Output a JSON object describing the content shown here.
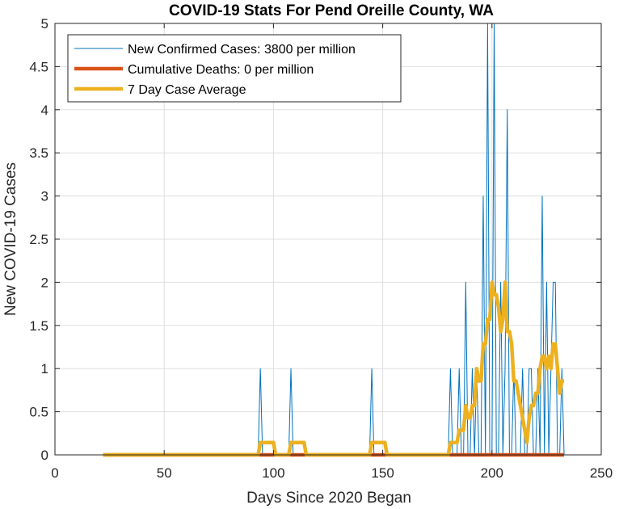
{
  "chart_data": {
    "type": "line",
    "title": "COVID-19 Stats For Pend Oreille County, WA",
    "xlabel": "Days Since 2020 Began",
    "ylabel": "New COVID-19 Cases",
    "xlim": [
      0,
      250
    ],
    "ylim": [
      0,
      5
    ],
    "xticks": [
      0,
      50,
      100,
      150,
      200,
      250
    ],
    "xtick_labels": [
      "0",
      "50",
      "100",
      "150",
      "200",
      "250"
    ],
    "yticks": [
      0,
      0.5,
      1,
      1.5,
      2,
      2.5,
      3,
      3.5,
      4,
      4.5,
      5
    ],
    "ytick_labels": [
      "0",
      "0.5",
      "1",
      "1.5",
      "2",
      "2.5",
      "3",
      "3.5",
      "4",
      "4.5",
      "5"
    ],
    "grid": true,
    "legend_position": "top-left",
    "series": [
      {
        "name": "New Confirmed Cases: 3800 per million",
        "color": "#0072bd",
        "style": "thin",
        "points": [
          [
            22,
            0
          ],
          [
            93,
            0
          ],
          [
            94,
            1
          ],
          [
            95,
            0
          ],
          [
            107,
            0
          ],
          [
            108,
            1
          ],
          [
            109,
            0
          ],
          [
            144,
            0
          ],
          [
            145,
            1
          ],
          [
            146,
            0
          ],
          [
            180,
            0
          ],
          [
            181,
            1
          ],
          [
            182,
            0
          ],
          [
            184,
            0
          ],
          [
            185,
            1
          ],
          [
            186,
            0
          ],
          [
            187,
            0
          ],
          [
            188,
            2
          ],
          [
            189,
            0
          ],
          [
            190,
            0
          ],
          [
            191,
            1
          ],
          [
            192,
            0
          ],
          [
            193,
            1
          ],
          [
            194,
            0
          ],
          [
            195,
            0
          ],
          [
            196,
            3
          ],
          [
            197,
            0
          ],
          [
            198,
            5
          ],
          [
            199,
            0
          ],
          [
            200,
            0
          ],
          [
            201,
            5
          ],
          [
            202,
            0
          ],
          [
            203,
            0
          ],
          [
            204,
            2
          ],
          [
            205,
            0
          ],
          [
            206,
            1
          ],
          [
            207,
            4
          ],
          [
            208,
            0
          ],
          [
            209,
            0
          ],
          [
            210,
            1
          ],
          [
            211,
            0
          ],
          [
            212,
            0
          ],
          [
            213,
            0
          ],
          [
            214,
            1
          ],
          [
            215,
            0
          ],
          [
            216,
            0
          ],
          [
            217,
            1
          ],
          [
            218,
            1
          ],
          [
            219,
            0
          ],
          [
            220,
            0
          ],
          [
            221,
            1
          ],
          [
            222,
            0
          ],
          [
            223,
            3
          ],
          [
            224,
            0
          ],
          [
            225,
            2
          ],
          [
            226,
            0
          ],
          [
            227,
            1
          ],
          [
            228,
            2
          ],
          [
            229,
            2
          ],
          [
            230,
            0
          ],
          [
            231,
            0
          ],
          [
            232,
            1
          ],
          [
            233,
            0
          ]
        ]
      },
      {
        "name": "Cumulative Deaths: 0 per million",
        "color": "#d95319",
        "style": "thick",
        "points": [
          [
            22,
            0
          ],
          [
            233,
            0
          ]
        ]
      },
      {
        "name": "7 Day Case Average",
        "color": "#edb120",
        "style": "thick",
        "points": [
          [
            22,
            0
          ],
          [
            93,
            0
          ],
          [
            94,
            0.143
          ],
          [
            100,
            0.143
          ],
          [
            101,
            0
          ],
          [
            107,
            0
          ],
          [
            108,
            0.143
          ],
          [
            114,
            0.143
          ],
          [
            115,
            0
          ],
          [
            144,
            0
          ],
          [
            145,
            0.143
          ],
          [
            151,
            0.143
          ],
          [
            152,
            0
          ],
          [
            180,
            0
          ],
          [
            181,
            0.143
          ],
          [
            184,
            0.143
          ],
          [
            185,
            0.286
          ],
          [
            187,
            0.286
          ],
          [
            188,
            0.571
          ],
          [
            189,
            0.429
          ],
          [
            190,
            0.429
          ],
          [
            191,
            0.571
          ],
          [
            192,
            0.571
          ],
          [
            193,
            1.0
          ],
          [
            194,
            0.857
          ],
          [
            195,
            0.857
          ],
          [
            196,
            1.286
          ],
          [
            197,
            1.286
          ],
          [
            198,
            1.571
          ],
          [
            199,
            1.571
          ],
          [
            200,
            2.0
          ],
          [
            201,
            1.857
          ],
          [
            202,
            1.857
          ],
          [
            203,
            1.714
          ],
          [
            204,
            1.429
          ],
          [
            205,
            1.571
          ],
          [
            206,
            2.0
          ],
          [
            207,
            1.429
          ],
          [
            208,
            1.429
          ],
          [
            209,
            1.286
          ],
          [
            210,
            0.857
          ],
          [
            211,
            0.857
          ],
          [
            212,
            0.714
          ],
          [
            213,
            0.571
          ],
          [
            214,
            0.429
          ],
          [
            215,
            0.286
          ],
          [
            216,
            0.143
          ],
          [
            217,
            0.429
          ],
          [
            218,
            0.571
          ],
          [
            219,
            0.571
          ],
          [
            220,
            0.714
          ],
          [
            221,
            0.714
          ],
          [
            222,
            1.0
          ],
          [
            223,
            1.143
          ],
          [
            224,
            1.143
          ],
          [
            225,
            1.0
          ],
          [
            226,
            1.143
          ],
          [
            227,
            1.0
          ],
          [
            228,
            1.286
          ],
          [
            229,
            1.286
          ],
          [
            230,
            1.0
          ],
          [
            231,
            0.714
          ],
          [
            232,
            0.857
          ],
          [
            233,
            0.857
          ]
        ]
      }
    ]
  }
}
